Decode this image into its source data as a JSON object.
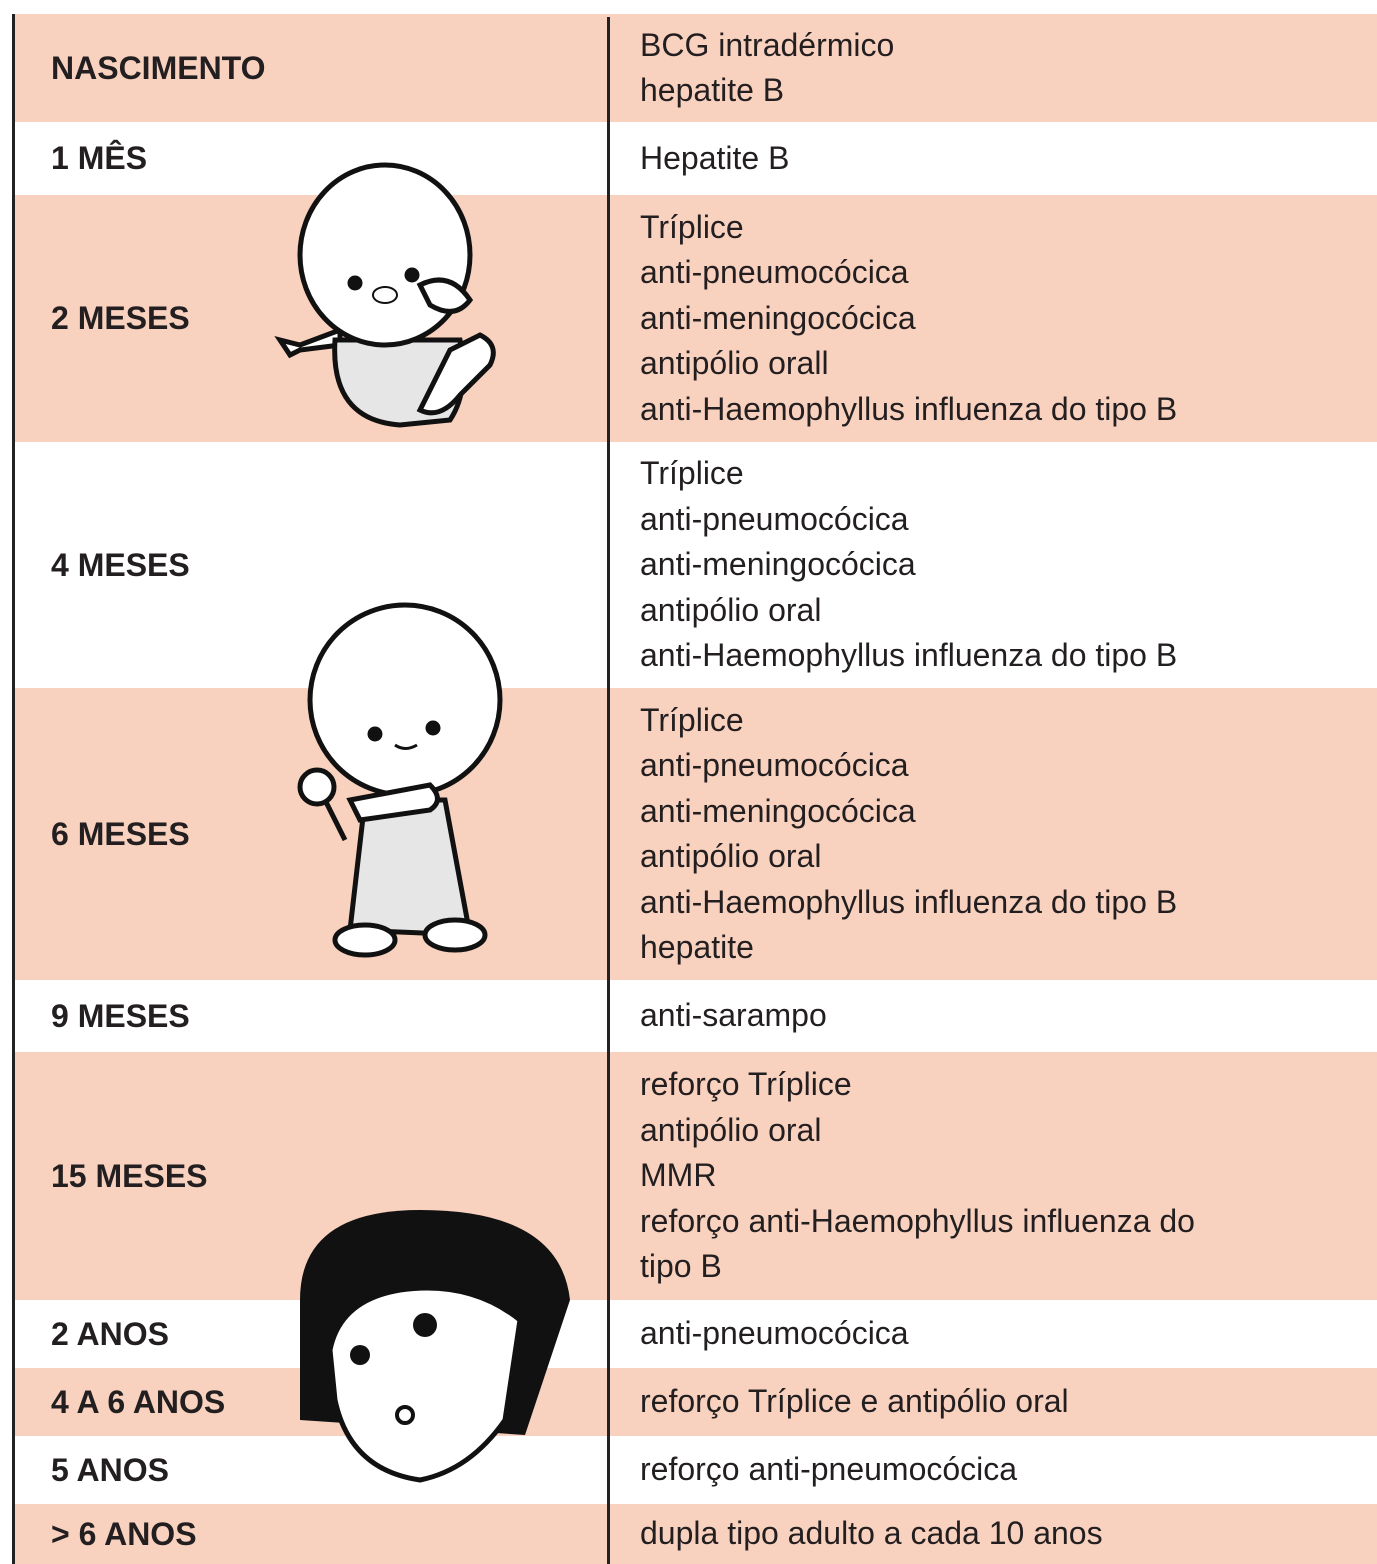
{
  "table": {
    "rows": [
      {
        "age": "NASCIMENTO",
        "vaccines": [
          "BCG intradérmico",
          "hepatite B"
        ]
      },
      {
        "age": "1 MÊS",
        "vaccines": [
          "Hepatite B"
        ]
      },
      {
        "age": "2 MESES",
        "vaccines": [
          "Tríplice",
          "anti-pneumocócica",
          "anti-meningocócica",
          "antipólio orall",
          "anti-Haemophyllus influenza do tipo B"
        ]
      },
      {
        "age": "4 MESES",
        "vaccines": [
          "Tríplice",
          "anti-pneumocócica",
          "anti-meningocócica",
          "antipólio oral",
          "anti-Haemophyllus influenza do tipo B"
        ]
      },
      {
        "age": "6 MESES",
        "vaccines": [
          "Tríplice",
          "anti-pneumocócica",
          "anti-meningocócica",
          "antipólio oral",
          "anti-Haemophyllus influenza do tipo B",
          "hepatite"
        ]
      },
      {
        "age": "9 MESES",
        "vaccines": [
          "anti-sarampo"
        ]
      },
      {
        "age": "15 MESES",
        "vaccines": [
          "reforço Tríplice",
          "antipólio oral",
          "MMR",
          "reforço anti-Haemophyllus influenza do",
          "tipo B"
        ]
      },
      {
        "age": "2 ANOS",
        "vaccines": [
          "anti-pneumocócica"
        ]
      },
      {
        "age": "4 A 6 ANOS",
        "vaccines": [
          "reforço Tríplice e antipólio oral"
        ]
      },
      {
        "age": "5 ANOS",
        "vaccines": [
          "reforço anti-pneumocócica"
        ]
      },
      {
        "age": "> 6 ANOS",
        "vaccines": [
          "dupla tipo adulto a cada 10 anos"
        ]
      }
    ]
  }
}
